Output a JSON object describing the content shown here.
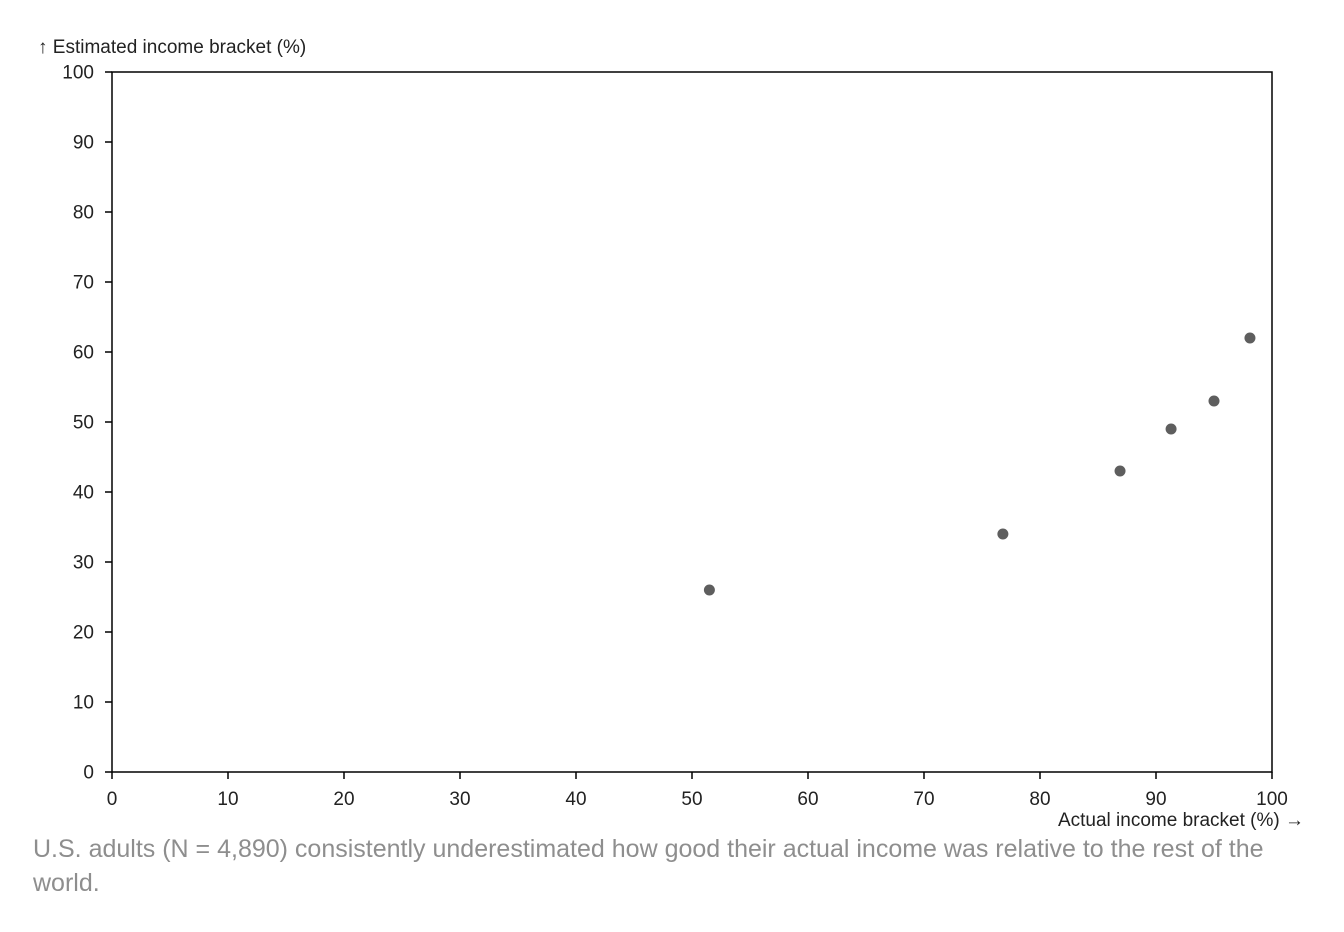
{
  "chart_data": {
    "type": "scatter",
    "title": "",
    "xlabel": "Actual income bracket (%) →",
    "ylabel": "↑ Estimated income bracket (%)",
    "xlim": [
      0,
      100
    ],
    "ylim": [
      0,
      100
    ],
    "x_ticks": [
      0,
      10,
      20,
      30,
      40,
      50,
      60,
      70,
      80,
      90,
      100
    ],
    "y_ticks": [
      0,
      10,
      20,
      30,
      40,
      50,
      60,
      70,
      80,
      90,
      100
    ],
    "grid": false,
    "legend": "none",
    "point_color": "#5e5e5e",
    "points": [
      {
        "x": 51.5,
        "y": 26
      },
      {
        "x": 76.8,
        "y": 34
      },
      {
        "x": 86.9,
        "y": 43
      },
      {
        "x": 91.3,
        "y": 49
      },
      {
        "x": 95.0,
        "y": 53
      },
      {
        "x": 98.1,
        "y": 62
      }
    ]
  },
  "caption": "U.S. adults (N = 4,890) consistently underestimated how good their actual income was relative to the rest of the world.",
  "colors": {
    "axis": "#000000",
    "text": "#222222",
    "caption": "#8e8e8e",
    "background": "#ffffff"
  }
}
